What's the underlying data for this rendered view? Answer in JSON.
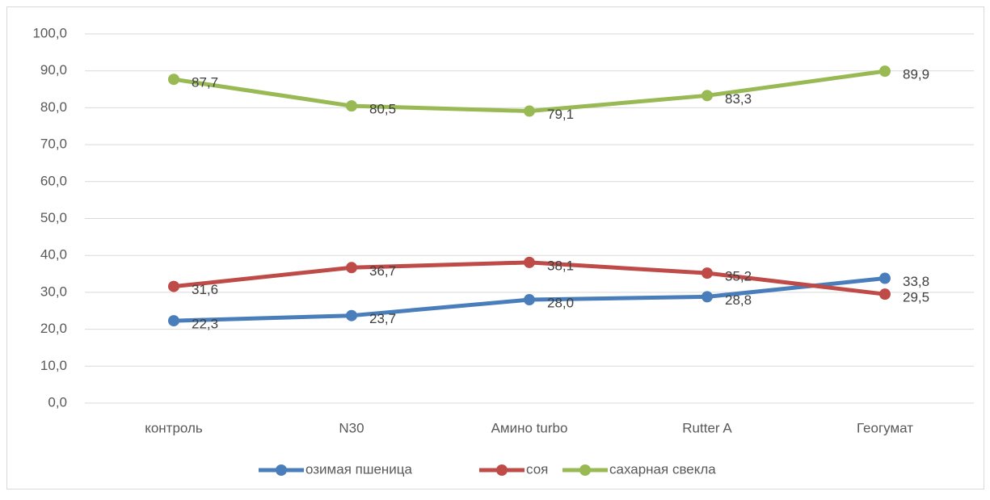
{
  "chart_data": {
    "type": "line",
    "categories": [
      "контроль",
      "N30",
      "Амино turbo",
      "Rutter A",
      "Геогумат"
    ],
    "series": [
      {
        "name": "озимая пшеница",
        "color": "#4a7ebb",
        "values": [
          22.3,
          23.7,
          28.0,
          28.8,
          33.8
        ],
        "value_labels": [
          "22,3",
          "23,7",
          "28,0",
          "28,8",
          "33,8"
        ]
      },
      {
        "name": "соя",
        "color": "#be4b48",
        "values": [
          31.6,
          36.7,
          38.1,
          35.2,
          29.5
        ],
        "value_labels": [
          "31,6",
          "36,7",
          "38,1",
          "35,2",
          "29,5"
        ]
      },
      {
        "name": "сахарная свекла",
        "color": "#98b954",
        "values": [
          87.7,
          80.5,
          79.1,
          83.3,
          89.9
        ],
        "value_labels": [
          "87,7",
          "80,5",
          "79,1",
          "83,3",
          "89,9"
        ]
      }
    ],
    "ylim": [
      0,
      100
    ],
    "yticks": [
      {
        "value": 0,
        "label": "0,0"
      },
      {
        "value": 10,
        "label": "10,0"
      },
      {
        "value": 20,
        "label": "20,0"
      },
      {
        "value": 30,
        "label": "30,0"
      },
      {
        "value": 40,
        "label": "40,0"
      },
      {
        "value": 50,
        "label": "50,0"
      },
      {
        "value": 60,
        "label": "60,0"
      },
      {
        "value": 70,
        "label": "70,0"
      },
      {
        "value": 80,
        "label": "80,0"
      },
      {
        "value": 90,
        "label": "90,0"
      },
      {
        "value": 100,
        "label": "100,0"
      }
    ],
    "grid": true,
    "legend": "bottom"
  }
}
